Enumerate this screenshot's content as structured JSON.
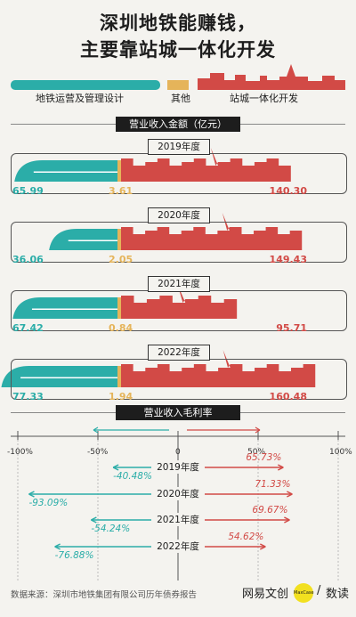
{
  "title_line1": "深圳地铁能赚钱，",
  "title_line2": "主要靠站城一体化开发",
  "legend": [
    {
      "label": "地铁运营及管理设计",
      "color": "#2bada8"
    },
    {
      "label": "其他",
      "color": "#e5b45a"
    },
    {
      "label": "站城一体化开发",
      "color": "#d24a46"
    }
  ],
  "revenue_section_title": "营业收入金额（亿元）",
  "margin_section_title": "营业收入毛利率",
  "source": "数据来源：深圳市地铁集团有限公司历年债券报告",
  "logo_text": "网易文创",
  "logo_badge": "MaxCase",
  "logo_sep": "/",
  "logo_right": "数读",
  "colors": {
    "teal": "#2bada8",
    "gold": "#e5b45a",
    "red": "#d24a46",
    "dark": "#1d1d1d"
  },
  "chart_data": [
    {
      "type": "bar",
      "title": "营业收入金额（亿元）",
      "categories": [
        "2019年度",
        "2020年度",
        "2021年度",
        "2022年度"
      ],
      "series": [
        {
          "name": "地铁运营及管理设计",
          "values": [
            65.99,
            36.06,
            67.42,
            77.33
          ]
        },
        {
          "name": "其他",
          "values": [
            3.61,
            2.05,
            0.84,
            1.94
          ]
        },
        {
          "name": "站城一体化开发",
          "values": [
            140.3,
            149.43,
            95.71,
            160.48
          ]
        }
      ],
      "labels": [
        [
          "65.99",
          "3.61",
          "140.30"
        ],
        [
          "36.06",
          "2.05",
          "149.43"
        ],
        [
          "67.42",
          "0.84",
          "95.71"
        ],
        [
          "77.33",
          "1.94",
          "160.48"
        ]
      ]
    },
    {
      "type": "bar",
      "title": "营业收入毛利率",
      "xlim": [
        -100,
        100
      ],
      "ticks": [
        "-100%",
        "-50%",
        "0",
        "50%",
        "100%"
      ],
      "categories": [
        "2019年度",
        "2020年度",
        "2021年度",
        "2022年度"
      ],
      "series": [
        {
          "name": "地铁运营及管理设计",
          "values": [
            -40.48,
            -93.09,
            -54.24,
            -76.88
          ]
        },
        {
          "name": "站城一体化开发",
          "values": [
            65.73,
            71.33,
            69.67,
            54.62
          ]
        }
      ],
      "labels": [
        [
          "-40.48%",
          "65.73%"
        ],
        [
          "-93.09%",
          "71.33%"
        ],
        [
          "-54.24%",
          "69.67%"
        ],
        [
          "-76.88%",
          "54.62%"
        ]
      ]
    }
  ]
}
